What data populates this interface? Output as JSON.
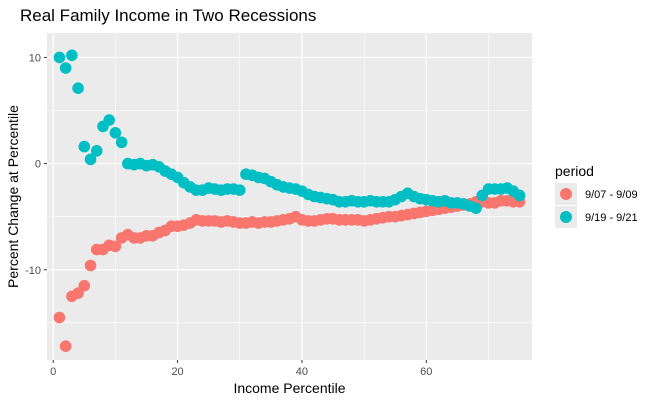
{
  "chart_data": {
    "type": "scatter",
    "title": "Real Family Income in Two Recessions",
    "xlabel": "Income Percentile",
    "ylabel": "Percent Change at Percentile",
    "xlim": [
      -1,
      77
    ],
    "ylim": [
      -18.5,
      12.3
    ],
    "x_ticks": [
      0,
      20,
      40,
      60
    ],
    "x_tick_labels": [
      "0",
      "20",
      "40",
      "60"
    ],
    "y_ticks": [
      -10,
      0,
      10
    ],
    "y_tick_labels": [
      "-10",
      "0",
      "10"
    ],
    "grid": true,
    "legend": {
      "title": "period",
      "placement": "right"
    },
    "series": [
      {
        "name": "9/07 - 9/09",
        "color": "#F8766D",
        "points": [
          [
            1,
            -14.5
          ],
          [
            2,
            -17.2
          ],
          [
            3,
            -12.5
          ],
          [
            4,
            -12.2
          ],
          [
            5,
            -11.5
          ],
          [
            6,
            -9.6
          ],
          [
            7,
            -8.1
          ],
          [
            8,
            -8.1
          ],
          [
            9,
            -7.7
          ],
          [
            10,
            -7.8
          ],
          [
            11,
            -7.0
          ],
          [
            12,
            -6.7
          ],
          [
            13,
            -7.0
          ],
          [
            14,
            -7.0
          ],
          [
            15,
            -6.8
          ],
          [
            16,
            -6.8
          ],
          [
            17,
            -6.5
          ],
          [
            18,
            -6.3
          ],
          [
            19,
            -5.9
          ],
          [
            20,
            -5.9
          ],
          [
            21,
            -5.8
          ],
          [
            22,
            -5.6
          ],
          [
            23,
            -5.3
          ],
          [
            24,
            -5.4
          ],
          [
            25,
            -5.4
          ],
          [
            26,
            -5.4
          ],
          [
            27,
            -5.5
          ],
          [
            28,
            -5.4
          ],
          [
            29,
            -5.5
          ],
          [
            30,
            -5.6
          ],
          [
            31,
            -5.6
          ],
          [
            32,
            -5.5
          ],
          [
            33,
            -5.6
          ],
          [
            34,
            -5.5
          ],
          [
            35,
            -5.5
          ],
          [
            36,
            -5.4
          ],
          [
            37,
            -5.3
          ],
          [
            38,
            -5.2
          ],
          [
            39,
            -5.0
          ],
          [
            40,
            -5.3
          ],
          [
            41,
            -5.4
          ],
          [
            42,
            -5.4
          ],
          [
            43,
            -5.3
          ],
          [
            44,
            -5.2
          ],
          [
            45,
            -5.2
          ],
          [
            46,
            -5.3
          ],
          [
            47,
            -5.3
          ],
          [
            48,
            -5.3
          ],
          [
            49,
            -5.3
          ],
          [
            50,
            -5.4
          ],
          [
            51,
            -5.3
          ],
          [
            52,
            -5.2
          ],
          [
            53,
            -5.1
          ],
          [
            54,
            -5.0
          ],
          [
            55,
            -5.0
          ],
          [
            56,
            -4.9
          ],
          [
            57,
            -4.8
          ],
          [
            58,
            -4.7
          ],
          [
            59,
            -4.6
          ],
          [
            60,
            -4.5
          ],
          [
            61,
            -4.4
          ],
          [
            62,
            -4.3
          ],
          [
            63,
            -4.2
          ],
          [
            64,
            -4.1
          ],
          [
            65,
            -4.0
          ],
          [
            66,
            -3.9
          ],
          [
            67,
            -3.8
          ],
          [
            68,
            -3.6
          ],
          [
            69,
            -3.6
          ],
          [
            70,
            -3.7
          ],
          [
            71,
            -3.7
          ],
          [
            72,
            -3.5
          ],
          [
            73,
            -3.5
          ],
          [
            74,
            -3.6
          ],
          [
            75,
            -3.6
          ]
        ]
      },
      {
        "name": "9/19 - 9/21",
        "color": "#00BFC4",
        "points": [
          [
            1,
            10.0
          ],
          [
            2,
            9.0
          ],
          [
            3,
            10.2
          ],
          [
            4,
            7.1
          ],
          [
            5,
            1.6
          ],
          [
            6,
            0.4
          ],
          [
            7,
            1.2
          ],
          [
            8,
            3.5
          ],
          [
            9,
            4.1
          ],
          [
            10,
            2.9
          ],
          [
            11,
            2.0
          ],
          [
            12,
            0.0
          ],
          [
            13,
            -0.1
          ],
          [
            14,
            0.0
          ],
          [
            15,
            -0.2
          ],
          [
            16,
            -0.1
          ],
          [
            17,
            -0.3
          ],
          [
            18,
            -0.7
          ],
          [
            19,
            -1.0
          ],
          [
            20,
            -1.3
          ],
          [
            21,
            -1.8
          ],
          [
            22,
            -2.2
          ],
          [
            23,
            -2.5
          ],
          [
            24,
            -2.5
          ],
          [
            25,
            -2.3
          ],
          [
            26,
            -2.4
          ],
          [
            27,
            -2.5
          ],
          [
            28,
            -2.4
          ],
          [
            29,
            -2.4
          ],
          [
            30,
            -2.5
          ],
          [
            31,
            -1.0
          ],
          [
            32,
            -1.1
          ],
          [
            33,
            -1.3
          ],
          [
            34,
            -1.4
          ],
          [
            35,
            -1.7
          ],
          [
            36,
            -2.0
          ],
          [
            37,
            -2.2
          ],
          [
            38,
            -2.3
          ],
          [
            39,
            -2.4
          ],
          [
            40,
            -2.6
          ],
          [
            41,
            -2.9
          ],
          [
            42,
            -3.1
          ],
          [
            43,
            -3.2
          ],
          [
            44,
            -3.3
          ],
          [
            45,
            -3.4
          ],
          [
            46,
            -3.6
          ],
          [
            47,
            -3.6
          ],
          [
            48,
            -3.5
          ],
          [
            49,
            -3.6
          ],
          [
            50,
            -3.6
          ],
          [
            51,
            -3.5
          ],
          [
            52,
            -3.6
          ],
          [
            53,
            -3.6
          ],
          [
            54,
            -3.6
          ],
          [
            55,
            -3.4
          ],
          [
            56,
            -3.1
          ],
          [
            57,
            -2.8
          ],
          [
            58,
            -3.1
          ],
          [
            59,
            -3.3
          ],
          [
            60,
            -3.4
          ],
          [
            61,
            -3.5
          ],
          [
            62,
            -3.6
          ],
          [
            63,
            -3.5
          ],
          [
            64,
            -3.7
          ],
          [
            65,
            -3.7
          ],
          [
            66,
            -3.8
          ],
          [
            67,
            -4.0
          ],
          [
            68,
            -4.2
          ],
          [
            69,
            -3.0
          ],
          [
            70,
            -2.4
          ],
          [
            71,
            -2.4
          ],
          [
            72,
            -2.4
          ],
          [
            73,
            -2.3
          ],
          [
            74,
            -2.6
          ],
          [
            75,
            -3.0
          ]
        ]
      }
    ]
  }
}
